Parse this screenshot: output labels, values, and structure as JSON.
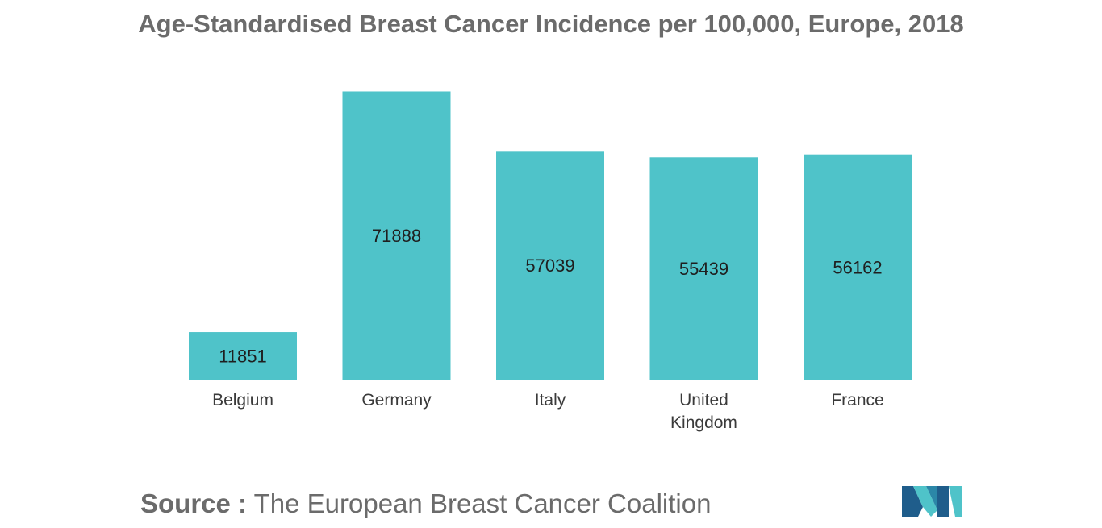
{
  "chart_data": {
    "type": "bar",
    "title": "Age-Standardised Breast Cancer Incidence per 100,000, Europe, 2018",
    "categories": [
      [
        "Belgium"
      ],
      [
        "Germany"
      ],
      [
        "Italy"
      ],
      [
        "United",
        "Kingdom"
      ],
      [
        "France"
      ]
    ],
    "values": [
      11851,
      71888,
      57039,
      55439,
      56162
    ],
    "value_labels": [
      "11851",
      "71888",
      "57039",
      "55439",
      "56162"
    ],
    "xlabel": "",
    "ylabel": "",
    "ylim": [
      0,
      75000
    ],
    "grid": false,
    "legend": "none",
    "colors": {
      "bar": "#4fc3c9"
    }
  },
  "source": {
    "label": "Source :",
    "text": "The European Breast Cancer Coalition"
  },
  "logo": {
    "icon": "mordor-intelligence-logo-icon",
    "colors": [
      "#1f5d8b",
      "#4fc3c9"
    ]
  }
}
